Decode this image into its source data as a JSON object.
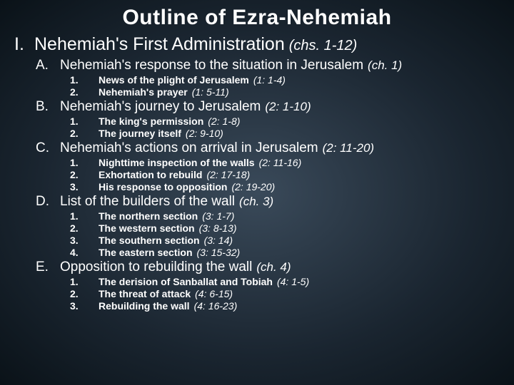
{
  "title": "Outline of Ezra-Nehemiah",
  "main": {
    "roman": "I.",
    "text": "Nehemiah's First Administration",
    "ref": "(chs. 1-12)"
  },
  "sections": [
    {
      "letter": "A.",
      "text": "Nehemiah's response to the situation in Jerusalem",
      "ref": "(ch. 1)",
      "items": [
        {
          "num": "1.",
          "text": "News of the plight of Jerusalem",
          "ref": "(1: 1-4)"
        },
        {
          "num": "2.",
          "text": "Nehemiah's prayer",
          "ref": "(1: 5-11)"
        }
      ]
    },
    {
      "letter": "B.",
      "text": "Nehemiah's journey to Jerusalem",
      "ref": "(2: 1-10)",
      "items": [
        {
          "num": "1.",
          "text": "The king's permission",
          "ref": "(2: 1-8)"
        },
        {
          "num": "2.",
          "text": "The journey itself",
          "ref": "(2: 9-10)"
        }
      ]
    },
    {
      "letter": "C.",
      "text": "Nehemiah's actions on arrival in Jerusalem",
      "ref": "(2: 11-20)",
      "items": [
        {
          "num": "1.",
          "text": "Nighttime inspection of the walls",
          "ref": "(2: 11-16)"
        },
        {
          "num": "2.",
          "text": "Exhortation to rebuild",
          "ref": "(2: 17-18)"
        },
        {
          "num": "3.",
          "text": "His response to opposition",
          "ref": "(2: 19-20)"
        }
      ]
    },
    {
      "letter": "D.",
      "text": "List of the builders of the wall",
      "ref": "(ch. 3)",
      "items": [
        {
          "num": "1.",
          "text": "The northern section",
          "ref": "(3: 1-7)"
        },
        {
          "num": "2.",
          "text": "The western section",
          "ref": "(3: 8-13)"
        },
        {
          "num": "3.",
          "text": "The southern section",
          "ref": "(3: 14)"
        },
        {
          "num": "4.",
          "text": "The eastern section",
          "ref": "(3: 15-32)"
        }
      ]
    },
    {
      "letter": "E.",
      "text": "Opposition to rebuilding the wall",
      "ref": "(ch. 4)",
      "items": [
        {
          "num": "1.",
          "text": "The derision of Sanballat and Tobiah",
          "ref": "(4: 1-5)"
        },
        {
          "num": "2.",
          "text": "The threat of attack",
          "ref": "(4: 6-15)"
        },
        {
          "num": "3.",
          "text": "Rebuilding the wall",
          "ref": "(4: 16-23)"
        }
      ]
    }
  ],
  "colors": {
    "text": "#ffffff",
    "bg_center": "#3a4a5a",
    "bg_edge": "#0a1218"
  }
}
